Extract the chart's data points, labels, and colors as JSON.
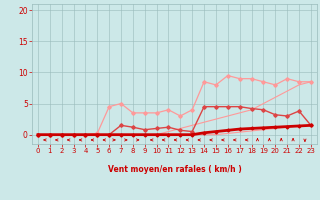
{
  "x": [
    0,
    1,
    2,
    3,
    4,
    5,
    6,
    7,
    8,
    9,
    10,
    11,
    12,
    13,
    14,
    15,
    16,
    17,
    18,
    19,
    20,
    21,
    22,
    23
  ],
  "series": [
    {
      "name": "line_straight1",
      "y": [
        0,
        0,
        0,
        0,
        0,
        0,
        0,
        0,
        0,
        0,
        0,
        0,
        0,
        0,
        0,
        0,
        0.2,
        0.4,
        0.6,
        0.8,
        1.0,
        1.2,
        1.4,
        1.5
      ],
      "color": "#ff9999",
      "lw": 0.8,
      "marker": null,
      "zorder": 2
    },
    {
      "name": "line_straight2",
      "y": [
        0,
        0,
        0,
        0,
        0,
        0,
        0,
        0,
        0,
        0,
        0,
        0.5,
        1,
        1.5,
        2,
        2.5,
        3,
        3.5,
        4,
        5,
        6,
        7,
        8,
        8.5
      ],
      "color": "#ff9999",
      "lw": 0.8,
      "marker": null,
      "zorder": 2
    },
    {
      "name": "line_wavy_light",
      "y": [
        0,
        0,
        0,
        0,
        0,
        0.2,
        4.5,
        5.0,
        3.5,
        3.5,
        3.5,
        4.0,
        3.0,
        4.0,
        8.5,
        8.0,
        9.5,
        9.0,
        9.0,
        8.5,
        8.0,
        9.0,
        8.5,
        8.5
      ],
      "color": "#ff9999",
      "lw": 0.9,
      "marker": "D",
      "markersize": 1.8,
      "zorder": 3
    },
    {
      "name": "line_wavy_mid",
      "y": [
        0,
        0,
        0,
        0,
        0,
        0,
        0,
        1.5,
        1.2,
        0.8,
        1.0,
        1.2,
        0.7,
        0.5,
        4.5,
        4.5,
        4.5,
        4.5,
        4.2,
        4.0,
        3.2,
        3.0,
        3.8,
        1.5
      ],
      "color": "#dd4444",
      "lw": 1.0,
      "marker": "D",
      "markersize": 1.8,
      "zorder": 4
    },
    {
      "name": "line_bold_low",
      "y": [
        0,
        0,
        0,
        0,
        0,
        0,
        0,
        0,
        0,
        0,
        0,
        0,
        0,
        0,
        0.3,
        0.5,
        0.7,
        0.9,
        1.0,
        1.1,
        1.2,
        1.3,
        1.4,
        1.5
      ],
      "color": "#cc0000",
      "lw": 2.0,
      "marker": "D",
      "markersize": 1.5,
      "zorder": 6
    }
  ],
  "xlabel": "Vent moyen/en rafales ( km/h )",
  "xlim": [
    -0.5,
    23.5
  ],
  "ylim": [
    -1.5,
    21
  ],
  "yticks": [
    0,
    5,
    10,
    15,
    20
  ],
  "xticks": [
    0,
    1,
    2,
    3,
    4,
    5,
    6,
    7,
    8,
    9,
    10,
    11,
    12,
    13,
    14,
    15,
    16,
    17,
    18,
    19,
    20,
    21,
    22,
    23
  ],
  "bg_color": "#cce8e8",
  "grid_color": "#99bbbb",
  "text_color": "#cc0000",
  "fig_width": 3.2,
  "fig_height": 2.0,
  "dpi": 100
}
